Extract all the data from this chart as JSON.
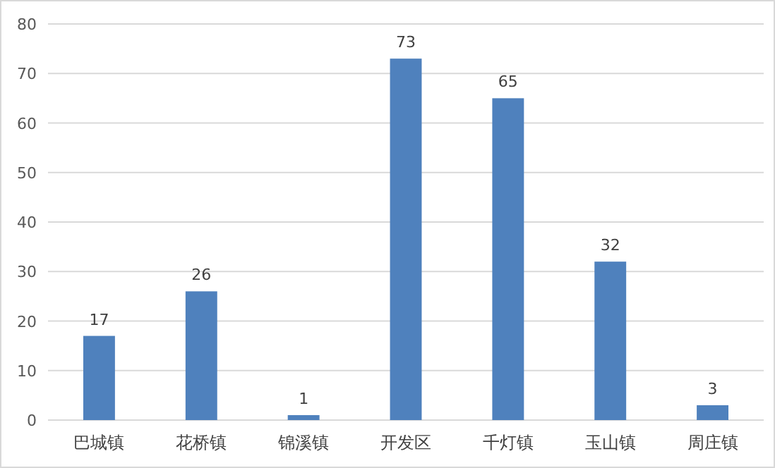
{
  "chart_data": {
    "type": "bar",
    "categories": [
      "巴城镇",
      "花桥镇",
      "锦溪镇",
      "开发区",
      "千灯镇",
      "玉山镇",
      "周庄镇"
    ],
    "values": [
      17,
      26,
      1,
      73,
      65,
      32,
      3
    ],
    "color": "#4f81bd",
    "ylim": [
      0,
      80
    ],
    "yticks": [
      0,
      10,
      20,
      30,
      40,
      50,
      60,
      70,
      80
    ],
    "grid": "y",
    "data_labels": true
  }
}
